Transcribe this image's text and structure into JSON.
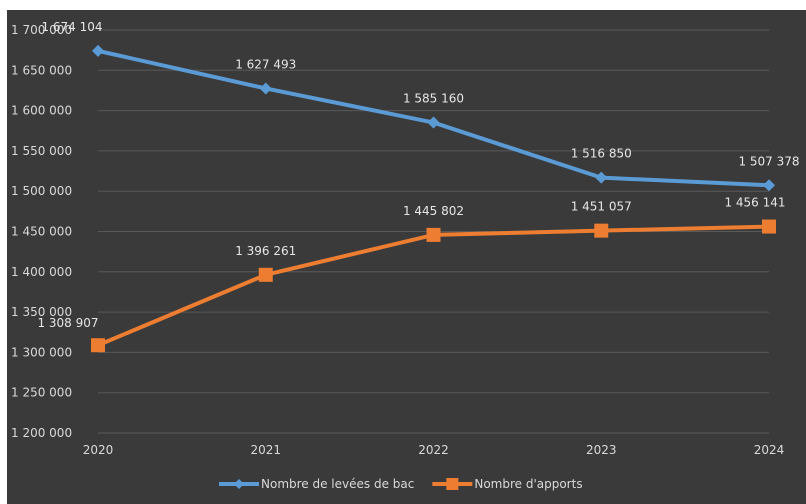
{
  "chart_data": {
    "type": "line",
    "title": "",
    "xlabel": "",
    "ylabel": "",
    "categories": [
      "2020",
      "2021",
      "2022",
      "2023",
      "2024"
    ],
    "ylim": [
      1200000,
      1700000
    ],
    "yticks": [
      "1 200 000",
      "1 250 000",
      "1 300 000",
      "1 350 000",
      "1 400 000",
      "1 450 000",
      "1 500 000",
      "1 550 000",
      "1 600 000",
      "1 650 000",
      "1 700 000"
    ],
    "grid": true,
    "legend_position": "bottom",
    "series": [
      {
        "name": "Nombre de levées de bac",
        "color": "#5b9bd5",
        "marker": "diamond",
        "values": [
          1674104,
          1627493,
          1585160,
          1516850,
          1507378
        ],
        "labels": [
          "1 674 104",
          "1 627 493",
          "1 585 160",
          "1 516 850",
          "1 507 378"
        ]
      },
      {
        "name": "Nombre d'apports",
        "color": "#ed7d31",
        "marker": "square",
        "values": [
          1308907,
          1396261,
          1445802,
          1451057,
          1456141
        ],
        "labels": [
          "1 308 907",
          "1 396 261",
          "1 445 802",
          "1 451 057",
          "1 456 141"
        ]
      }
    ]
  }
}
